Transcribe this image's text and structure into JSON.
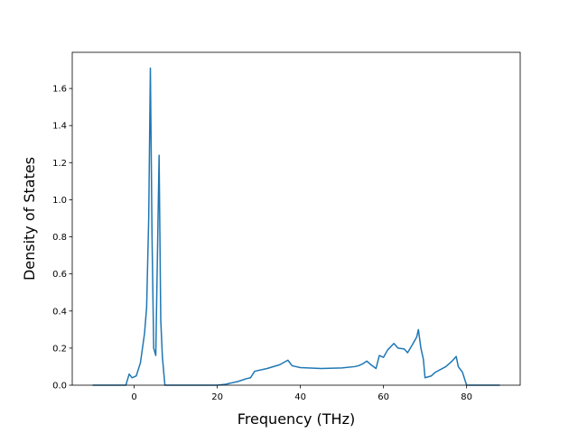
{
  "chart_data": {
    "type": "line",
    "x_label": "Frequency (THz)",
    "y_label": "Density of States",
    "x": [
      -10,
      -2,
      -1.2,
      -0.5,
      0.5,
      1.5,
      2.5,
      3,
      3.5,
      3.9,
      4.3,
      4.7,
      5.2,
      6,
      6.4,
      6.8,
      7.4,
      20,
      22,
      25,
      27,
      28,
      29,
      32,
      35,
      37,
      38,
      40,
      45,
      50,
      53,
      54,
      55,
      56,
      57,
      58.2,
      59,
      60,
      61,
      62.5,
      63.5,
      65,
      65.8,
      67,
      68,
      68.4,
      69,
      69.6,
      70,
      71.5,
      72.5,
      75,
      76.5,
      77.5,
      78,
      79,
      80,
      88
    ],
    "series": [
      {
        "color": "#1f77b4",
        "values": [
          0,
          0,
          0.06,
          0.04,
          0.05,
          0.12,
          0.28,
          0.42,
          0.9,
          1.71,
          0.8,
          0.2,
          0.16,
          1.24,
          0.35,
          0.15,
          0,
          0,
          0.005,
          0.02,
          0.035,
          0.04,
          0.075,
          0.09,
          0.11,
          0.135,
          0.105,
          0.095,
          0.09,
          0.093,
          0.1,
          0.105,
          0.115,
          0.13,
          0.11,
          0.09,
          0.16,
          0.15,
          0.19,
          0.225,
          0.2,
          0.195,
          0.175,
          0.22,
          0.26,
          0.3,
          0.2,
          0.14,
          0.04,
          0.05,
          0.07,
          0.1,
          0.13,
          0.155,
          0.1,
          0.07,
          0,
          0
        ]
      }
    ],
    "xlim": [
      -14.9,
      92.9
    ],
    "xticks": [
      0,
      20,
      40,
      60,
      80
    ],
    "ylim": [
      0,
      1.795
    ],
    "yticks": [
      {
        "value": 0,
        "label": "0.0"
      },
      {
        "value": 0.2,
        "label": "0.2"
      },
      {
        "value": 0.4,
        "label": "0.4"
      },
      {
        "value": 0.6,
        "label": "0.6"
      },
      {
        "value": 0.8,
        "label": "0.8"
      },
      {
        "value": 1.0,
        "label": "1.0"
      },
      {
        "value": 1.2,
        "label": "1.2"
      },
      {
        "value": 1.4,
        "label": "1.4"
      },
      {
        "value": 1.6,
        "label": "1.6"
      }
    ]
  }
}
